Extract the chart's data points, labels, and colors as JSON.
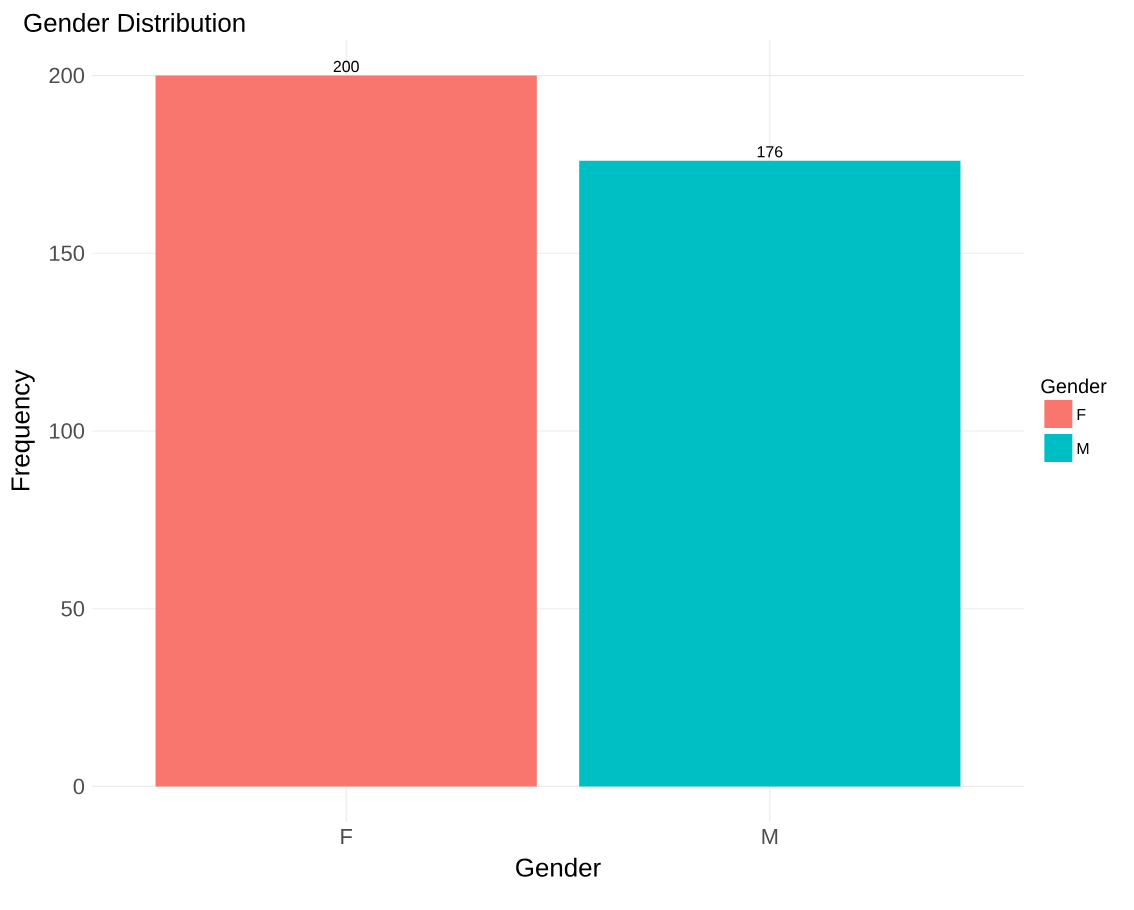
{
  "chart_data": {
    "type": "bar",
    "title": "Gender Distribution",
    "xlabel": "Gender",
    "ylabel": "Frequency",
    "legend_title": "Gender",
    "categories": [
      "F",
      "M"
    ],
    "series": [
      {
        "name": "F",
        "color": "#f8766d",
        "values": [
          200,
          null
        ]
      },
      {
        "name": "M",
        "color": "#00bfc4",
        "values": [
          null,
          176
        ]
      }
    ],
    "ylim": [
      -10,
      210
    ],
    "yticks": [
      0,
      50,
      100,
      150,
      200
    ],
    "grid": true,
    "legend": "right",
    "data_labels": true
  }
}
